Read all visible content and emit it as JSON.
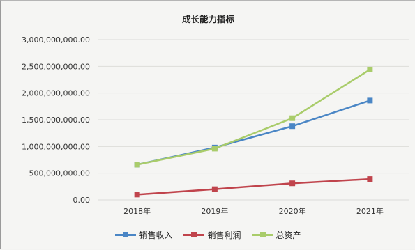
{
  "chart_data": {
    "type": "line",
    "title": "成长能力指标",
    "categories": [
      "2018年",
      "2019年",
      "2020年",
      "2021年"
    ],
    "ylim": [
      0,
      3000000000
    ],
    "yticks": [
      "0.00",
      "500,000,000.00",
      "1,000,000,000.00",
      "1,500,000,000.00",
      "2,000,000,000.00",
      "2,500,000,000.00",
      "3,000,000,000.00"
    ],
    "grid": true,
    "legend_position": "bottom",
    "series": [
      {
        "name": "销售收入",
        "color": "#4a86c5",
        "values": [
          660000000,
          980000000,
          1380000000,
          1860000000
        ]
      },
      {
        "name": "销售利润",
        "color": "#c0444c",
        "values": [
          100000000,
          200000000,
          310000000,
          390000000
        ]
      },
      {
        "name": "总资产",
        "color": "#a9cc6a",
        "values": [
          660000000,
          960000000,
          1530000000,
          2440000000
        ]
      }
    ]
  }
}
